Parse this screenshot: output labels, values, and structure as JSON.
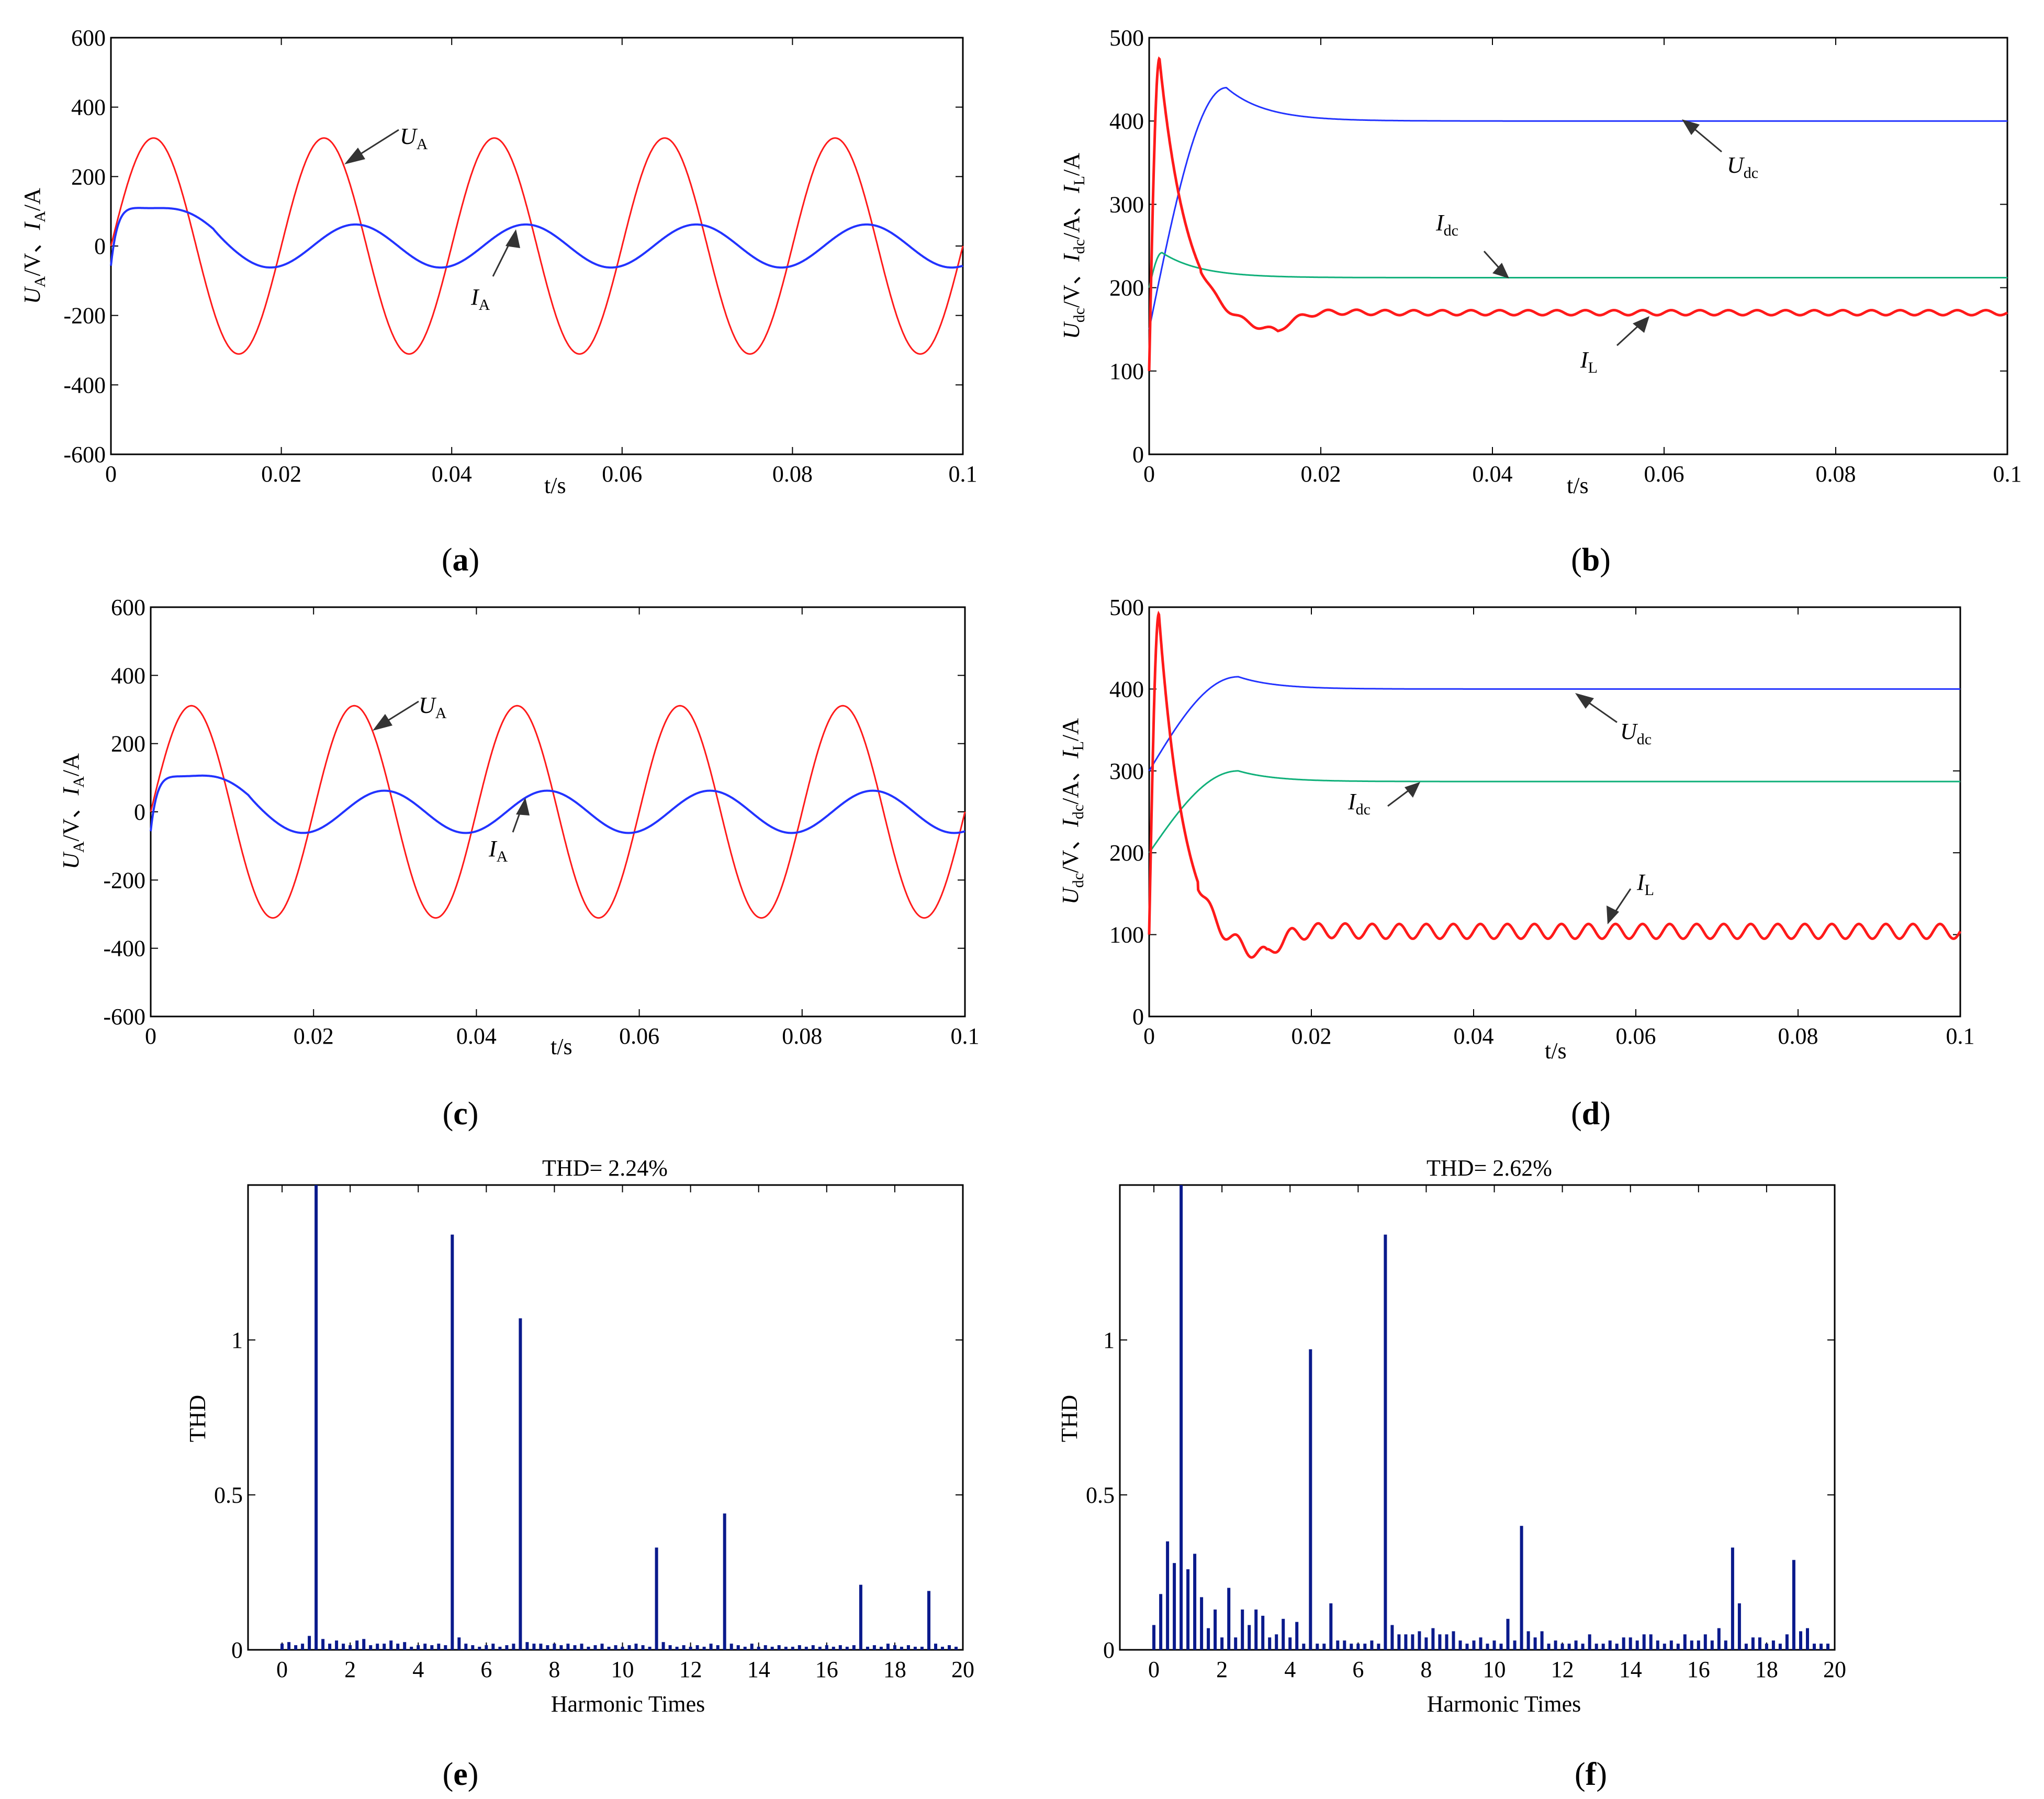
{
  "colors": {
    "red": "#ff1a1a",
    "blue": "#2233ff",
    "green": "#10b07a",
    "bar": "#0a1a8c"
  },
  "chart_data": [
    {
      "id": "a",
      "type": "line",
      "xlim": [
        0,
        0.1
      ],
      "ylim": [
        -600,
        600
      ],
      "xticks": [
        "0",
        "0.02",
        "0.04",
        "0.06",
        "0.08",
        "0.1"
      ],
      "yticks": [
        "-600",
        "-400",
        "-200",
        "0",
        "200",
        "400",
        "600"
      ],
      "xlabel": "t/s",
      "ylabel": {
        "parts": [
          "U",
          "A",
          "/V、",
          "I",
          "A",
          "/A"
        ]
      },
      "series": [
        {
          "name": "UA",
          "color": "red",
          "model": "sine",
          "amplitude": 311,
          "freq": 50,
          "phase": 0
        },
        {
          "name": "IA",
          "color": "blue",
          "model": "transient_current",
          "steady_amp": 62,
          "peak": 165,
          "freq": 50
        }
      ],
      "annotations": [
        {
          "label": "U",
          "sub": "A"
        },
        {
          "label": "I",
          "sub": "A"
        }
      ],
      "caption": "a"
    },
    {
      "id": "b",
      "type": "line",
      "xlim": [
        0,
        0.1
      ],
      "ylim": [
        0,
        500
      ],
      "xticks": [
        "0",
        "0.02",
        "0.04",
        "0.06",
        "0.08",
        "0.1"
      ],
      "yticks": [
        "0",
        "100",
        "200",
        "300",
        "400",
        "500"
      ],
      "xlabel": "t/s",
      "ylabel": {
        "parts": [
          "U",
          "dc",
          "/V、",
          "I",
          "dc",
          "/A、",
          "I",
          "L",
          "/A"
        ]
      },
      "series": [
        {
          "name": "Udc",
          "color": "blue",
          "start": 150,
          "peak": 440,
          "peak_t": 0.009,
          "steady": 400,
          "ripple": 0
        },
        {
          "name": "Idc",
          "color": "green",
          "start": 200,
          "peak": 242,
          "peak_t": 0.0015,
          "steady": 212,
          "ripple": 0
        },
        {
          "name": "IL",
          "color": "red",
          "start": 100,
          "peak": 475,
          "peak_t": 0.0012,
          "dip": 148,
          "dip_t": 0.015,
          "steady": 170,
          "ripple": 3
        }
      ],
      "annotations": [
        {
          "label": "U",
          "sub": "dc"
        },
        {
          "label": "I",
          "sub": "dc"
        },
        {
          "label": "I",
          "sub": "L"
        }
      ],
      "caption": "b"
    },
    {
      "id": "c",
      "type": "line",
      "xlim": [
        0,
        0.1
      ],
      "ylim": [
        -600,
        600
      ],
      "xticks": [
        "0",
        "0.02",
        "0.04",
        "0.06",
        "0.08",
        "0.1"
      ],
      "yticks": [
        "-600",
        "-400",
        "-200",
        "0",
        "200",
        "400",
        "600"
      ],
      "xlabel": "t/s",
      "ylabel": {
        "parts": [
          "U",
          "A",
          "/V、",
          "I",
          "A",
          "/A"
        ]
      },
      "series": [
        {
          "name": "UA",
          "color": "red",
          "model": "sine",
          "amplitude": 311,
          "freq": 50,
          "phase": 0
        },
        {
          "name": "IA",
          "color": "blue",
          "model": "transient_current",
          "steady_amp": 62,
          "peak": 158,
          "freq": 50
        }
      ],
      "annotations": [
        {
          "label": "U",
          "sub": "A"
        },
        {
          "label": "I",
          "sub": "A"
        }
      ],
      "caption": "c"
    },
    {
      "id": "d",
      "type": "line",
      "xlim": [
        0,
        0.1
      ],
      "ylim": [
        0,
        500
      ],
      "xticks": [
        "0",
        "0.02",
        "0.04",
        "0.06",
        "0.08",
        "0.1"
      ],
      "yticks": [
        "0",
        "100",
        "200",
        "300",
        "400",
        "500"
      ],
      "xlabel": "t/s",
      "ylabel": {
        "parts": [
          "U",
          "dc",
          "/V、",
          "I",
          "dc",
          "/A、",
          "I",
          "L",
          "/A"
        ]
      },
      "series": [
        {
          "name": "Udc",
          "color": "blue",
          "start": 300,
          "peak": 415,
          "peak_t": 0.011,
          "steady": 400,
          "ripple": 0
        },
        {
          "name": "Idc",
          "color": "green",
          "start": 200,
          "peak": 300,
          "peak_t": 0.011,
          "steady": 287,
          "ripple": 0
        },
        {
          "name": "IL",
          "color": "red",
          "start": 100,
          "peak": 492,
          "peak_t": 0.0012,
          "dip": 75,
          "dip_t": 0.0145,
          "steady": 104,
          "ripple": 9
        }
      ],
      "annotations": [
        {
          "label": "U",
          "sub": "dc"
        },
        {
          "label": "I",
          "sub": "dc"
        },
        {
          "label": "I",
          "sub": "L"
        }
      ],
      "caption": "d"
    },
    {
      "id": "e",
      "type": "bar",
      "title": "THD= 2.24%",
      "xlabel": "Harmonic Times",
      "ylabel": "THD",
      "xlim": [
        -1,
        20
      ],
      "ylim": [
        0,
        1.5
      ],
      "xticks": [
        "0",
        "2",
        "4",
        "6",
        "8",
        "10",
        "12",
        "14",
        "16",
        "18",
        "20"
      ],
      "yticks": [
        "0",
        "0.5",
        "1"
      ],
      "x": [
        0.0,
        0.2,
        0.4,
        0.6,
        0.8,
        1.0,
        1.2,
        1.4,
        1.6,
        1.8,
        2.0,
        2.2,
        2.4,
        2.6,
        2.8,
        3.0,
        3.2,
        3.4,
        3.6,
        3.8,
        4.0,
        4.2,
        4.4,
        4.6,
        4.8,
        5.0,
        5.2,
        5.4,
        5.6,
        5.8,
        6.0,
        6.2,
        6.4,
        6.6,
        6.8,
        7.0,
        7.2,
        7.4,
        7.6,
        7.8,
        8.0,
        8.2,
        8.4,
        8.6,
        8.8,
        9.0,
        9.2,
        9.4,
        9.6,
        9.8,
        10.0,
        10.2,
        10.4,
        10.6,
        10.8,
        11.0,
        11.2,
        11.4,
        11.6,
        11.8,
        12.0,
        12.2,
        12.4,
        12.6,
        12.8,
        13.0,
        13.2,
        13.4,
        13.6,
        13.8,
        14.0,
        14.2,
        14.4,
        14.6,
        14.8,
        15.0,
        15.2,
        15.4,
        15.6,
        15.8,
        16.0,
        16.2,
        16.4,
        16.6,
        16.8,
        17.0,
        17.2,
        17.4,
        17.6,
        17.8,
        18.0,
        18.2,
        18.4,
        18.6,
        18.8,
        19.0,
        19.2,
        19.4,
        19.6,
        19.8
      ],
      "values": [
        0.02,
        0.025,
        0.015,
        0.02,
        0.045,
        1.5,
        0.035,
        0.02,
        0.03,
        0.02,
        0.015,
        0.03,
        0.035,
        0.015,
        0.02,
        0.02,
        0.03,
        0.02,
        0.025,
        0.01,
        0.015,
        0.02,
        0.015,
        0.02,
        0.015,
        1.34,
        0.04,
        0.02,
        0.015,
        0.01,
        0.015,
        0.02,
        0.01,
        0.015,
        0.02,
        1.07,
        0.025,
        0.02,
        0.02,
        0.015,
        0.02,
        0.015,
        0.02,
        0.015,
        0.02,
        0.01,
        0.015,
        0.02,
        0.01,
        0.015,
        0.01,
        0.015,
        0.02,
        0.015,
        0.01,
        0.33,
        0.025,
        0.015,
        0.01,
        0.015,
        0.01,
        0.015,
        0.01,
        0.02,
        0.015,
        0.44,
        0.02,
        0.015,
        0.01,
        0.02,
        0.01,
        0.015,
        0.01,
        0.015,
        0.01,
        0.01,
        0.015,
        0.01,
        0.015,
        0.01,
        0.015,
        0.01,
        0.015,
        0.01,
        0.015,
        0.21,
        0.01,
        0.015,
        0.01,
        0.02,
        0.015,
        0.01,
        0.015,
        0.01,
        0.01,
        0.19,
        0.02,
        0.01,
        0.015,
        0.01
      ],
      "caption": "e"
    },
    {
      "id": "f",
      "type": "bar",
      "title": "THD= 2.62%",
      "xlabel": "Harmonic Times",
      "ylabel": "THD",
      "xlim": [
        -1,
        20
      ],
      "ylim": [
        0,
        1.5
      ],
      "xticks": [
        "0",
        "2",
        "4",
        "6",
        "8",
        "10",
        "12",
        "14",
        "16",
        "18",
        "20"
      ],
      "yticks": [
        "0",
        "0.5",
        "1"
      ],
      "x": [
        0.0,
        0.2,
        0.4,
        0.6,
        0.8,
        1.0,
        1.2,
        1.4,
        1.6,
        1.8,
        2.0,
        2.2,
        2.4,
        2.6,
        2.8,
        3.0,
        3.2,
        3.4,
        3.6,
        3.8,
        4.0,
        4.2,
        4.4,
        4.6,
        4.8,
        5.0,
        5.2,
        5.4,
        5.6,
        5.8,
        6.0,
        6.2,
        6.4,
        6.6,
        6.8,
        7.0,
        7.2,
        7.4,
        7.6,
        7.8,
        8.0,
        8.2,
        8.4,
        8.6,
        8.8,
        9.0,
        9.2,
        9.4,
        9.6,
        9.8,
        10.0,
        10.2,
        10.4,
        10.6,
        10.8,
        11.0,
        11.2,
        11.4,
        11.6,
        11.8,
        12.0,
        12.2,
        12.4,
        12.6,
        12.8,
        13.0,
        13.2,
        13.4,
        13.6,
        13.8,
        14.0,
        14.2,
        14.4,
        14.6,
        14.8,
        15.0,
        15.2,
        15.4,
        15.6,
        15.8,
        16.0,
        16.2,
        16.4,
        16.6,
        16.8,
        17.0,
        17.2,
        17.4,
        17.6,
        17.8,
        18.0,
        18.2,
        18.4,
        18.6,
        18.8,
        19.0,
        19.2,
        19.4,
        19.6,
        19.8
      ],
      "values": [
        0.08,
        0.18,
        0.35,
        0.28,
        1.5,
        0.26,
        0.31,
        0.17,
        0.07,
        0.13,
        0.04,
        0.2,
        0.04,
        0.13,
        0.08,
        0.13,
        0.11,
        0.04,
        0.05,
        0.1,
        0.04,
        0.09,
        0.02,
        0.97,
        0.02,
        0.02,
        0.15,
        0.03,
        0.03,
        0.02,
        0.02,
        0.02,
        0.03,
        0.02,
        1.34,
        0.08,
        0.05,
        0.05,
        0.05,
        0.06,
        0.04,
        0.07,
        0.05,
        0.05,
        0.06,
        0.03,
        0.02,
        0.03,
        0.04,
        0.02,
        0.03,
        0.02,
        0.1,
        0.03,
        0.4,
        0.06,
        0.04,
        0.06,
        0.02,
        0.03,
        0.02,
        0.02,
        0.03,
        0.02,
        0.05,
        0.02,
        0.02,
        0.03,
        0.02,
        0.04,
        0.04,
        0.03,
        0.05,
        0.05,
        0.03,
        0.02,
        0.03,
        0.02,
        0.05,
        0.03,
        0.03,
        0.05,
        0.03,
        0.07,
        0.03,
        0.33,
        0.15,
        0.02,
        0.04,
        0.04,
        0.02,
        0.03,
        0.02,
        0.05,
        0.29,
        0.06,
        0.07,
        0.02,
        0.02,
        0.02
      ],
      "caption": "f"
    }
  ]
}
